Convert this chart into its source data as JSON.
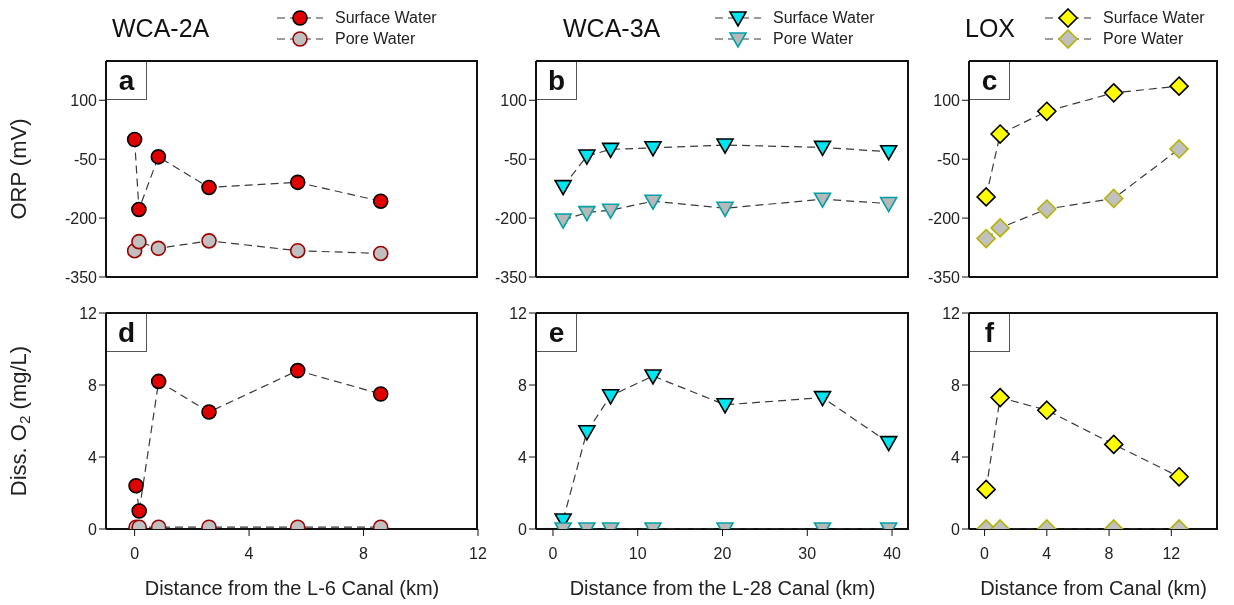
{
  "chart_data": [
    {
      "type": "line",
      "title": "WCA-2A",
      "ylabel": "ORP (mV)",
      "annotations": [
        "a"
      ],
      "x": [
        0,
        0.15,
        0.83,
        2.6,
        5.7,
        8.6
      ],
      "series": [
        {
          "name": "Surface Water",
          "color": "#e00000",
          "values": [
            0,
            -178,
            -44,
            -122,
            -109,
            -157
          ]
        },
        {
          "name": "Pore Water",
          "color": "#c0c0c0",
          "values": [
            -283,
            -260,
            -277,
            -258,
            -283,
            -290
          ]
        }
      ],
      "xlim": [
        -1,
        12
      ],
      "xticks": [
        0,
        4,
        8,
        12
      ],
      "ylim": [
        -350,
        200
      ],
      "yticks": [
        -350,
        -200,
        -50,
        100
      ],
      "tick_labels": "y",
      "legend": "top",
      "marker": "circle",
      "line_style": "dashed"
    },
    {
      "type": "line",
      "title": "WCA-3A",
      "annotations": [
        "b"
      ],
      "x": [
        1.2,
        4,
        6.8,
        11.8,
        20.3,
        31.8,
        39.6
      ],
      "series": [
        {
          "name": "Surface Water",
          "color": "#00e5ee",
          "values": [
            -120,
            -42,
            -25,
            -21,
            -14,
            -20,
            -31
          ]
        },
        {
          "name": "Pore Water",
          "color": "#b8b8b8",
          "values": [
            -205,
            -186,
            -180,
            -157,
            -175,
            -152,
            -163
          ]
        }
      ],
      "xlim": [
        -2,
        42
      ],
      "xticks": [
        0,
        10,
        20,
        30,
        40
      ],
      "ylim": [
        -350,
        200
      ],
      "yticks": [
        -350,
        -200,
        -50,
        100
      ],
      "tick_labels": "y",
      "legend": "top",
      "marker": "triangle",
      "line_style": "dashed"
    },
    {
      "type": "line",
      "title": "LOX",
      "annotations": [
        "c"
      ],
      "x": [
        0.1,
        1,
        4,
        8.3,
        12.5
      ],
      "series": [
        {
          "name": "Surface Water",
          "color": "#ffff00",
          "values": [
            -146,
            14,
            72,
            119,
            136
          ]
        },
        {
          "name": "Pore Water",
          "color": "#c0c0c0",
          "values": [
            -252,
            -225,
            -177,
            -150,
            -24
          ]
        }
      ],
      "xlim": [
        -1,
        15
      ],
      "xticks": [
        0,
        4,
        8,
        12
      ],
      "ylim": [
        -350,
        200
      ],
      "yticks": [
        -350,
        -200,
        -50,
        100
      ],
      "tick_labels": "y",
      "legend": "top",
      "marker": "diamond",
      "line_style": "dashed"
    },
    {
      "type": "line",
      "ylabel": "Diss. O$_{2}$ (mg/L)",
      "xlabel": "Distance from the L-6 Canal (km)",
      "annotations": [
        "d"
      ],
      "x": [
        0.05,
        0.16,
        0.84,
        2.6,
        5.7,
        8.6
      ],
      "series": [
        {
          "color": "#e00000",
          "values": [
            2.4,
            1,
            8.2,
            6.5,
            8.8,
            7.5
          ]
        },
        {
          "color": "#c0c0c0",
          "values": [
            0.1,
            0.1,
            0.1,
            0.1,
            0.1,
            0.1
          ]
        }
      ],
      "xlim": [
        -1,
        12
      ],
      "xticks": [
        0,
        4,
        8,
        12
      ],
      "ylim": [
        0,
        12
      ],
      "yticks": [
        0,
        4,
        8,
        12
      ],
      "marker": "circle",
      "line_style": "dashed"
    },
    {
      "type": "line",
      "xlabel": "Distance from the L-28 Canal (km)",
      "annotations": [
        "e"
      ],
      "x": [
        1.2,
        4,
        6.8,
        11.8,
        20.3,
        31.8,
        39.6
      ],
      "series": [
        {
          "color": "#00e5ee",
          "values": [
            0.5,
            5.4,
            7.4,
            8.5,
            6.9,
            7.3,
            4.8
          ]
        },
        {
          "color": "#b8b8b8",
          "values": [
            0,
            0,
            0,
            0,
            0,
            0,
            0
          ]
        }
      ],
      "xlim": [
        -2,
        42
      ],
      "xticks": [
        0,
        10,
        20,
        30,
        40
      ],
      "ylim": [
        0,
        12
      ],
      "yticks": [
        0,
        4,
        8,
        12
      ],
      "marker": "triangle",
      "line_style": "dashed"
    },
    {
      "type": "line",
      "xlabel": "Distance from Canal (km)",
      "annotations": [
        "f"
      ],
      "x": [
        0.1,
        1,
        4,
        8.3,
        12.5
      ],
      "series": [
        {
          "color": "#ffff00",
          "values": [
            2.2,
            7.3,
            6.6,
            4.7,
            2.9
          ]
        },
        {
          "color": "#c0c0c0",
          "values": [
            0,
            0,
            0,
            0,
            0
          ]
        }
      ],
      "xlim": [
        -1,
        15
      ],
      "xticks": [
        0,
        4,
        8,
        12
      ],
      "ylim": [
        0,
        12
      ],
      "yticks": [
        0,
        4,
        8,
        12
      ],
      "marker": "diamond",
      "line_style": "dashed"
    }
  ]
}
